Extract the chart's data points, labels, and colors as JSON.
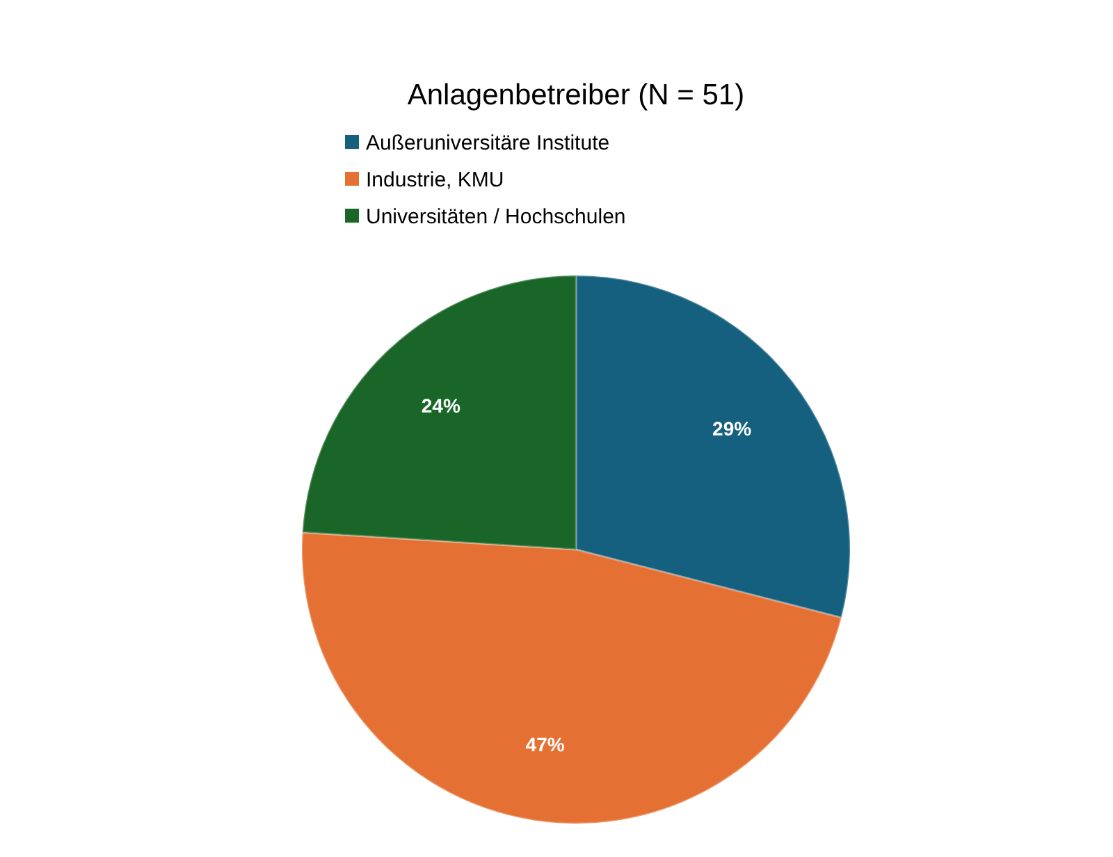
{
  "chart_data": {
    "type": "pie",
    "title": "Anlagenbetreiber (N = 51)",
    "categories": [
      "Außeruniversitäre Institute",
      "Industrie, KMU",
      "Universitäten / Hochschulen"
    ],
    "values": [
      29,
      47,
      24
    ],
    "colors": [
      "#155f7f",
      "#e57033",
      "#1a6628"
    ],
    "value_labels": [
      "29%",
      "47%",
      "24%"
    ],
    "legend": "top"
  }
}
